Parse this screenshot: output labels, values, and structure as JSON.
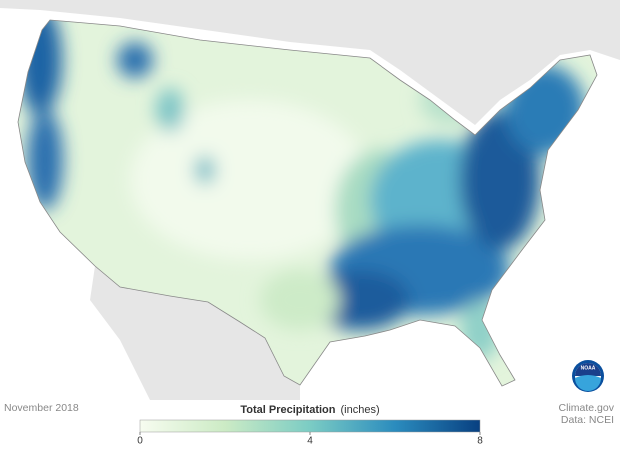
{
  "map": {
    "date": "November 2018",
    "logo": "NOAA"
  },
  "legend": {
    "title": "Total Precipitation",
    "unit": "(inches)",
    "range": [
      0,
      8
    ],
    "ticks": [
      0,
      4,
      8
    ],
    "colors": [
      "#f7fcf0",
      "#ccebc5",
      "#7bccc4",
      "#2b8cbe",
      "#084081"
    ]
  },
  "credits": {
    "source": "Climate.gov",
    "data": "Data: NCEI"
  }
}
